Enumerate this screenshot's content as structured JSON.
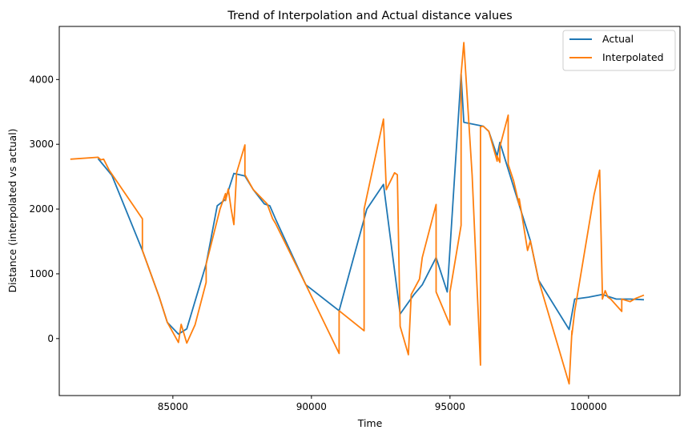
{
  "chart_data": {
    "type": "line",
    "title": "Trend of Interpolation and Actual distance values",
    "xlabel": "Time",
    "ylabel": "Distance (interpolated vs actual)",
    "xlim": [
      80900,
      103300
    ],
    "ylim": [
      -880,
      4820
    ],
    "xticks": [
      85000,
      90000,
      95000,
      100000
    ],
    "xtick_labels": [
      "85000",
      "90000",
      "95000",
      "100000"
    ],
    "yticks": [
      0,
      1000,
      2000,
      3000,
      4000
    ],
    "ytick_labels": [
      "0",
      "1000",
      "2000",
      "3000",
      "4000"
    ],
    "grid": false,
    "legend_position": "top-right",
    "series": [
      {
        "name": "Actual",
        "color": "#1f77b4",
        "x": [
          82300,
          82800,
          83900,
          84500,
          84800,
          85200,
          85500,
          86200,
          86600,
          86900,
          87200,
          87600,
          87900,
          88300,
          88500,
          88700,
          89800,
          91000,
          92000,
          92600,
          93200,
          93700,
          94000,
          94500,
          94900,
          95400,
          95500,
          96200,
          96400,
          96700,
          96800,
          97500,
          97900,
          98200,
          99300,
          99500,
          100000,
          100500,
          101000,
          101500,
          102000
        ],
        "y": [
          2780,
          2520,
          1360,
          650,
          250,
          70,
          150,
          1150,
          2050,
          2150,
          2550,
          2510,
          2300,
          2080,
          2050,
          1850,
          830,
          430,
          2000,
          2380,
          380,
          680,
          830,
          1250,
          720,
          4080,
          3340,
          3280,
          3200,
          2820,
          3030,
          2060,
          1510,
          900,
          140,
          610,
          640,
          680,
          610,
          610,
          600
        ]
      },
      {
        "name": "Interpolated",
        "color": "#ff7f0e",
        "x": [
          81300,
          82300,
          82400,
          82500,
          82700,
          83900,
          83900,
          84500,
          84800,
          85200,
          85300,
          85500,
          85800,
          86200,
          86200,
          86700,
          86900,
          86900,
          87000,
          87100,
          87200,
          87300,
          87600,
          87600,
          87900,
          88400,
          88600,
          88700,
          89800,
          91000,
          91000,
          91900,
          91900,
          92600,
          92700,
          93000,
          93100,
          93200,
          93500,
          93600,
          93900,
          94000,
          94500,
          94500,
          95000,
          95000,
          95400,
          95400,
          95500,
          95800,
          96100,
          96100,
          96200,
          96400,
          96700,
          96700,
          96800,
          96800,
          97100,
          97100,
          97300,
          97500,
          97500,
          97800,
          97900,
          98200,
          99300,
          99400,
          99400,
          99500,
          100200,
          100400,
          100500,
          100500,
          100600,
          100700,
          100800,
          101200,
          101200,
          101500,
          101700,
          102000
        ],
        "y": [
          2770,
          2800,
          2760,
          2770,
          2600,
          1850,
          1360,
          650,
          250,
          -60,
          220,
          -70,
          210,
          870,
          1150,
          2000,
          2240,
          2130,
          2310,
          2010,
          1760,
          2560,
          2990,
          2530,
          2300,
          2080,
          1850,
          1780,
          830,
          -230,
          430,
          120,
          2000,
          3390,
          2300,
          2560,
          2530,
          190,
          -250,
          680,
          920,
          1250,
          2070,
          720,
          210,
          720,
          1750,
          4080,
          4570,
          2520,
          -410,
          3270,
          3280,
          3200,
          2740,
          2820,
          2720,
          2960,
          3450,
          2690,
          2430,
          2060,
          2160,
          1360,
          1510,
          900,
          -700,
          120,
          60,
          420,
          2220,
          2600,
          680,
          610,
          740,
          640,
          610,
          420,
          610,
          570,
          620,
          670
        ]
      }
    ]
  }
}
